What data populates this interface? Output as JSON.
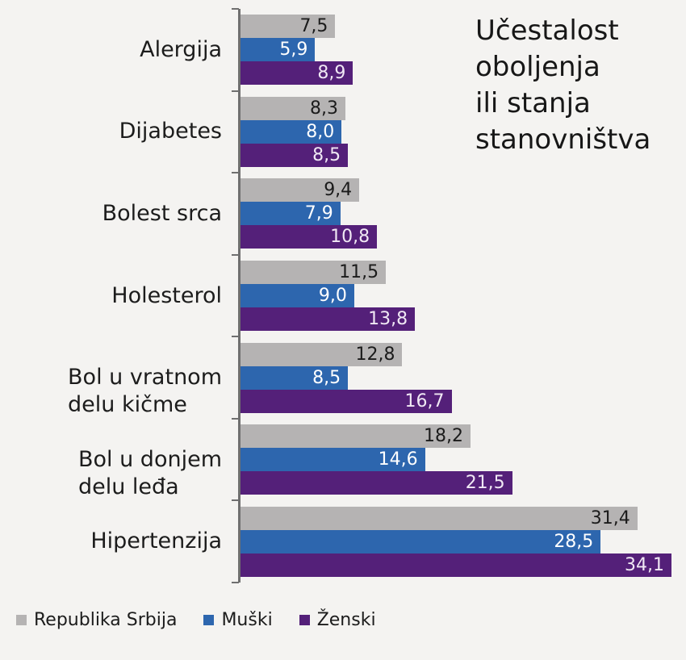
{
  "title": {
    "lines": [
      "Učestalost",
      "oboljenja",
      "ili stanja",
      "stanovništva"
    ],
    "full": "Učestalost oboljenja ili stanja stanovništva"
  },
  "chart_data": {
    "type": "bar",
    "orientation": "horizontal",
    "title": "Učestalost oboljenja ili stanja stanovništva",
    "categories": [
      "Alergija",
      "Dijabetes",
      "Bolest srca",
      "Holesterol",
      "Bol u vratnom\ndelu kičme",
      "Bol u donjem\ndelu leđa",
      "Hipertenzija"
    ],
    "series": [
      {
        "name": "Republika Srbija",
        "color": "#b5b3b3",
        "label_color": "#1b1b1b",
        "values": [
          7.5,
          8.3,
          9.4,
          11.5,
          12.8,
          18.2,
          31.4
        ],
        "value_labels": [
          "7,5",
          "8,3",
          "9,4",
          "11,5",
          "12,8",
          "18,2",
          "31,4"
        ]
      },
      {
        "name": "Muški",
        "color": "#2d66ae",
        "label_color": "#ffffff",
        "values": [
          5.9,
          8.0,
          7.9,
          9.0,
          8.5,
          14.6,
          28.5
        ],
        "value_labels": [
          "5,9",
          "8,0",
          "7,9",
          "9,0",
          "8,5",
          "14,6",
          "28,5"
        ]
      },
      {
        "name": "Ženski",
        "color": "#542079",
        "label_color": "#f0e8f4",
        "values": [
          8.9,
          8.5,
          10.8,
          13.8,
          16.7,
          21.5,
          34.1
        ],
        "value_labels": [
          "8,9",
          "8,5",
          "10,8",
          "13,8",
          "16,7",
          "21,5",
          "34,1"
        ]
      }
    ],
    "xlim": [
      0,
      35.25
    ],
    "grid": false,
    "legend_position": "bottom",
    "axis_color": "#6f6f6f",
    "background_color": "#f4f3f1"
  },
  "legend": {
    "items": [
      {
        "label": "Republika Srbija",
        "color": "#b5b3b3"
      },
      {
        "label": "Muški",
        "color": "#2d66ae"
      },
      {
        "label": "Ženski",
        "color": "#542079"
      }
    ]
  }
}
